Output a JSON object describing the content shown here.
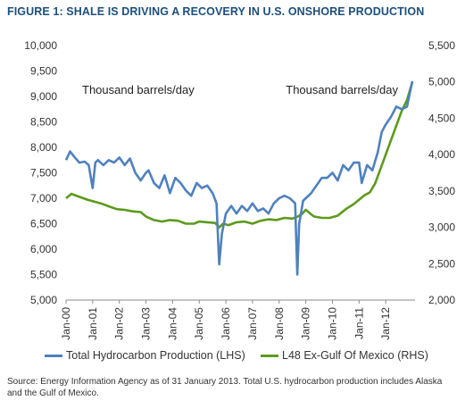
{
  "header": {
    "title": "FIGURE 1: SHALE IS DRIVING A RECOVERY IN U.S. ONSHORE PRODUCTION"
  },
  "source_note": "Source: Energy Information Agency as of 31 January 2013. Total U.S. hydrocarbon production includes Alaska and the Gulf of Mexico.",
  "colors": {
    "total": "#4f81bd",
    "l48": "#5c9a1c",
    "title": "#1d4f7c"
  },
  "chart_data": {
    "type": "line",
    "title": "",
    "left_axis": {
      "label": "Thousand barrels/day",
      "range": [
        5000,
        10000
      ],
      "ticks": [
        "5,000",
        "5,500",
        "6,000",
        "6,500",
        "7,000",
        "7,500",
        "8,000",
        "8,500",
        "9,000",
        "9,500",
        "10,000"
      ]
    },
    "right_axis": {
      "label": "Thousand barrels/day",
      "range": [
        2000,
        5500
      ],
      "ticks": [
        "2,000",
        "2,500",
        "3,000",
        "3,500",
        "4,000",
        "4,500",
        "5,000",
        "5,500"
      ]
    },
    "x_axis": {
      "range": [
        2000,
        2013.1
      ],
      "ticks": [
        "Jan-00",
        "Jan-01",
        "Jan-02",
        "Jan-03",
        "Jan-04",
        "Jan-05",
        "Jan-06",
        "Jan-07",
        "Jan-08",
        "Jan-09",
        "Jan-10",
        "Jan-11",
        "Jan-12"
      ]
    },
    "grid": false,
    "legend_position": "bottom",
    "series": [
      {
        "name": "Total Hydrocarbon Production (LHS)",
        "axis": "left",
        "x": [
          2000.0,
          2000.15,
          2000.3,
          2000.5,
          2000.7,
          2000.85,
          2001.0,
          2001.1,
          2001.2,
          2001.4,
          2001.6,
          2001.8,
          2002.0,
          2002.2,
          2002.4,
          2002.6,
          2002.8,
          2003.0,
          2003.1,
          2003.3,
          2003.5,
          2003.7,
          2003.9,
          2004.1,
          2004.3,
          2004.5,
          2004.7,
          2004.9,
          2005.1,
          2005.3,
          2005.5,
          2005.65,
          2005.75,
          2005.85,
          2006.0,
          2006.2,
          2006.4,
          2006.6,
          2006.8,
          2007.0,
          2007.2,
          2007.4,
          2007.6,
          2007.8,
          2008.0,
          2008.2,
          2008.4,
          2008.6,
          2008.68,
          2008.75,
          2008.9,
          2009.0,
          2009.2,
          2009.4,
          2009.6,
          2009.8,
          2010.0,
          2010.2,
          2010.4,
          2010.6,
          2010.8,
          2011.0,
          2011.1,
          2011.3,
          2011.5,
          2011.7,
          2011.85,
          2012.0,
          2012.2,
          2012.4,
          2012.6,
          2012.8,
          2013.0
        ],
        "values": [
          7750,
          7920,
          7820,
          7700,
          7720,
          7650,
          7200,
          7700,
          7750,
          7650,
          7750,
          7700,
          7800,
          7650,
          7780,
          7500,
          7350,
          7500,
          7550,
          7300,
          7200,
          7450,
          7100,
          7400,
          7300,
          7150,
          7050,
          7300,
          7200,
          7250,
          7100,
          6900,
          5700,
          6300,
          6700,
          6850,
          6700,
          6850,
          6750,
          6900,
          6750,
          6800,
          6700,
          6900,
          7000,
          7050,
          7000,
          6900,
          5500,
          6500,
          6950,
          7000,
          7100,
          7250,
          7400,
          7400,
          7500,
          7350,
          7650,
          7550,
          7700,
          7700,
          7300,
          7650,
          7550,
          7900,
          8300,
          8450,
          8600,
          8800,
          8750,
          8800,
          9300
        ]
      },
      {
        "name": "L48 Ex-Gulf Of Mexico (RHS)",
        "axis": "right",
        "x": [
          2000.0,
          2000.2,
          2000.5,
          2000.8,
          2001.0,
          2001.3,
          2001.6,
          2001.9,
          2002.2,
          2002.5,
          2002.8,
          2003.0,
          2003.3,
          2003.6,
          2003.9,
          2004.2,
          2004.5,
          2004.8,
          2005.0,
          2005.3,
          2005.6,
          2005.75,
          2005.9,
          2006.1,
          2006.4,
          2006.7,
          2007.0,
          2007.3,
          2007.6,
          2007.9,
          2008.2,
          2008.5,
          2008.7,
          2008.85,
          2009.0,
          2009.3,
          2009.6,
          2009.9,
          2010.2,
          2010.5,
          2010.8,
          2011.0,
          2011.2,
          2011.4,
          2011.6,
          2011.8,
          2012.0,
          2012.2,
          2012.4,
          2012.6,
          2012.8,
          2013.0
        ],
        "values": [
          3400,
          3460,
          3420,
          3380,
          3360,
          3330,
          3290,
          3250,
          3240,
          3220,
          3210,
          3150,
          3100,
          3080,
          3100,
          3090,
          3050,
          3050,
          3080,
          3070,
          3060,
          3000,
          3050,
          3030,
          3070,
          3080,
          3050,
          3090,
          3110,
          3100,
          3130,
          3120,
          3150,
          3180,
          3240,
          3150,
          3130,
          3130,
          3160,
          3250,
          3320,
          3380,
          3440,
          3480,
          3600,
          3800,
          4000,
          4200,
          4400,
          4600,
          4750,
          5000
        ]
      }
    ]
  }
}
